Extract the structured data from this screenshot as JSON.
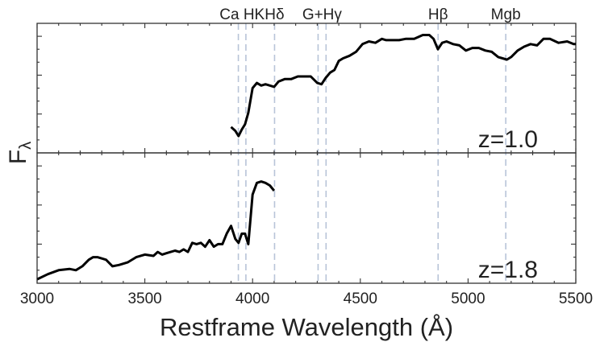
{
  "chart_data": {
    "type": "line",
    "xlabel": "Restframe Wavelength (Å)",
    "ylabel": "F",
    "ylabel_sub": "λ",
    "xlim": [
      3000,
      5500
    ],
    "x_ticks": [
      3000,
      3500,
      4000,
      4500,
      5000,
      5500
    ],
    "x_tick_labels": [
      "3000",
      "3500",
      "4000",
      "4500",
      "5000",
      "5500"
    ],
    "line_color": "#000000",
    "feature_line_color": "#b8c4d8",
    "features": [
      {
        "label": "Ca HK",
        "lines": [
          3934,
          3969
        ]
      },
      {
        "label": "Hδ",
        "lines": [
          4102
        ]
      },
      {
        "label": "G+Hγ",
        "lines": [
          4304,
          4341
        ]
      },
      {
        "label": "Hβ",
        "lines": [
          4861
        ]
      },
      {
        "label": "Mgb",
        "lines": [
          5175
        ]
      }
    ],
    "panels": [
      {
        "label": "z=1.0",
        "ylim": [
          0,
          1
        ],
        "series": [
          {
            "x": [
              3900,
              3920,
              3935,
              3950,
              3965,
              3980,
              4000,
              4020,
              4040,
              4060,
              4080,
              4100,
              4120,
              4150,
              4180,
              4210,
              4240,
              4270,
              4300,
              4320,
              4340,
              4360,
              4380,
              4400,
              4420,
              4450,
              4480,
              4510,
              4540,
              4570,
              4600,
              4620,
              4650,
              4680,
              4710,
              4750,
              4790,
              4820,
              4840,
              4860,
              4880,
              4900,
              4930,
              4960,
              4990,
              5020,
              5050,
              5080,
              5110,
              5140,
              5160,
              5180,
              5200,
              5230,
              5260,
              5290,
              5320,
              5350,
              5380,
              5420,
              5460,
              5490,
              5500
            ],
            "y": [
              0.2,
              0.17,
              0.13,
              0.18,
              0.22,
              0.31,
              0.5,
              0.54,
              0.52,
              0.53,
              0.52,
              0.51,
              0.55,
              0.57,
              0.57,
              0.59,
              0.59,
              0.59,
              0.54,
              0.53,
              0.58,
              0.62,
              0.64,
              0.71,
              0.73,
              0.75,
              0.78,
              0.84,
              0.86,
              0.85,
              0.88,
              0.87,
              0.87,
              0.87,
              0.88,
              0.88,
              0.91,
              0.91,
              0.88,
              0.8,
              0.85,
              0.86,
              0.84,
              0.83,
              0.79,
              0.81,
              0.81,
              0.79,
              0.78,
              0.74,
              0.73,
              0.72,
              0.74,
              0.79,
              0.82,
              0.84,
              0.83,
              0.88,
              0.88,
              0.85,
              0.86,
              0.84,
              0.84
            ]
          }
        ]
      },
      {
        "label": "z=1.8",
        "ylim": [
          0,
          1
        ],
        "series": [
          {
            "x": [
              3000,
              3050,
              3100,
              3150,
              3180,
              3210,
              3240,
              3260,
              3280,
              3300,
              3320,
              3350,
              3380,
              3420,
              3460,
              3500,
              3540,
              3560,
              3580,
              3600,
              3620,
              3640,
              3660,
              3680,
              3700,
              3720,
              3740,
              3760,
              3780,
              3800,
              3820,
              3840,
              3860,
              3880,
              3900,
              3920,
              3935,
              3950,
              3965,
              3980,
              4000,
              4020,
              4040,
              4060,
              4080,
              4100
            ],
            "y": [
              0.03,
              0.07,
              0.1,
              0.11,
              0.1,
              0.13,
              0.18,
              0.2,
              0.2,
              0.19,
              0.18,
              0.13,
              0.14,
              0.16,
              0.2,
              0.22,
              0.21,
              0.24,
              0.22,
              0.23,
              0.24,
              0.25,
              0.24,
              0.26,
              0.24,
              0.31,
              0.3,
              0.31,
              0.28,
              0.33,
              0.28,
              0.3,
              0.3,
              0.38,
              0.44,
              0.34,
              0.31,
              0.38,
              0.38,
              0.3,
              0.68,
              0.77,
              0.78,
              0.77,
              0.75,
              0.71
            ]
          }
        ]
      }
    ]
  }
}
